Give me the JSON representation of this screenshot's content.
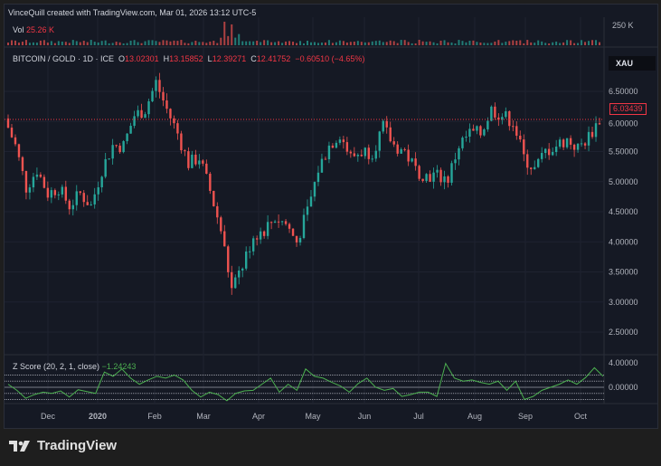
{
  "header": {
    "credit": "VinceQuill created with TradingView.com, Mar 01, 2026 13:12 UTC-5"
  },
  "volume": {
    "label": "Vol",
    "value": "25.26 K",
    "axis_label": "250 K"
  },
  "legend": {
    "symbol": "BITCOIN / GOLD · 1D · ICE",
    "o_label": "O",
    "o": "13.02301",
    "h_label": "H",
    "h": "13.15852",
    "l_label": "L",
    "l": "12.39271",
    "c_label": "C",
    "c": "12.41752",
    "change": "−0.60510 (−4.65%)"
  },
  "price_axis": {
    "currency": "XAU",
    "last_price": "6.03439",
    "ticks": [
      "6.50000",
      "6.00000",
      "5.50000",
      "5.00000",
      "4.50000",
      "4.00000",
      "3.50000",
      "3.00000",
      "2.50000"
    ]
  },
  "zscore": {
    "label": "Z Score (20, 2, 1, close)",
    "value": "−1.24243",
    "ticks": [
      "4.00000",
      "0.00000"
    ]
  },
  "time_axis": [
    "Dec",
    "2020",
    "Feb",
    "Mar",
    "Apr",
    "May",
    "Jun",
    "Jul",
    "Aug",
    "Sep",
    "Oct"
  ],
  "footer": {
    "brand": "TradingView"
  },
  "colors": {
    "up": "#26a69a",
    "down": "#ef5350",
    "zscore": "#4caf50",
    "background": "#151924"
  },
  "chart_data": [
    {
      "type": "candlestick",
      "title": "BITCOIN / GOLD · 1D · ICE",
      "ylim": [
        2.3,
        6.9
      ],
      "x_range": [
        "2019-11-15",
        "2020-10-20"
      ],
      "closes": [
        6.05,
        5.6,
        4.9,
        5.2,
        4.8,
        4.9,
        4.6,
        4.8,
        4.6,
        5.2,
        5.6,
        5.6,
        6.1,
        6.2,
        6.65,
        6.2,
        5.8,
        5.3,
        5.4,
        4.85,
        4.2,
        3.2,
        3.6,
        4.1,
        4.2,
        4.4,
        4.3,
        4.0,
        4.5,
        5.2,
        5.6,
        5.8,
        5.4,
        5.5,
        5.5,
        5.9,
        5.6,
        5.5,
        5.2,
        5.1,
        5.1,
        5.05,
        5.6,
        5.8,
        5.8,
        6.2,
        6.1,
        6.0,
        5.4,
        5.2,
        5.5,
        5.6,
        5.7,
        5.55,
        5.75,
        6.03
      ]
    },
    {
      "type": "line",
      "title": "Z Score (20, 2, 1, close)",
      "ylim": [
        -2.5,
        4.5
      ],
      "values": [
        0.5,
        -0.5,
        -1.8,
        -1.2,
        -0.8,
        -1.0,
        -0.6,
        -1.6,
        -0.4,
        -0.7,
        -1.0,
        2.5,
        1.8,
        3.0,
        1.5,
        0.5,
        1.2,
        1.8,
        1.5,
        2.0,
        1.2,
        -0.5,
        -1.6,
        -0.8,
        -1.2,
        -2.2,
        -1.0,
        -0.6,
        -0.5,
        0.5,
        1.5,
        -0.8,
        0.5,
        -0.5,
        3.0,
        1.8,
        1.5,
        0.8,
        0.2,
        -0.8,
        0.6,
        1.5,
        0.0,
        -0.5,
        -0.2,
        -1.5,
        -1.2,
        -0.8,
        -0.8,
        -1.5,
        3.9,
        1.5,
        1.0,
        1.2,
        0.8,
        0.5,
        1.0,
        -0.5,
        1.0,
        -2.0,
        -1.5,
        -0.5,
        0.0,
        0.5,
        1.2,
        0.5,
        1.6,
        3.2,
        1.8
      ]
    }
  ]
}
